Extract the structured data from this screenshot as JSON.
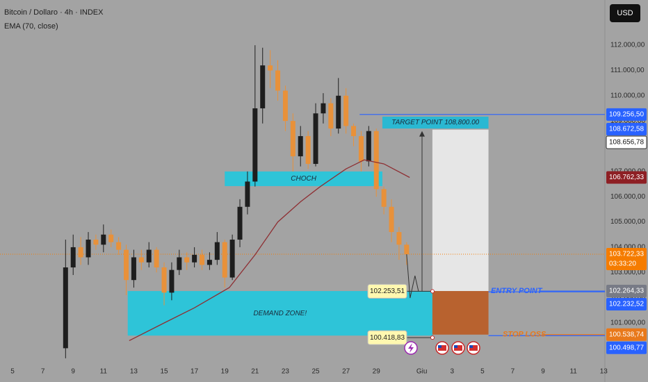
{
  "header": {
    "symbol": "Bitcoin / Dollaro · 4h · INDEX",
    "indicator": "EMA (70, close)",
    "currency": "USD"
  },
  "chart_data": {
    "type": "candlestick",
    "x": [
      8.5,
      9,
      9.5,
      10,
      10.5,
      11,
      11.5,
      12,
      12.5,
      13,
      13.5,
      14,
      14.5,
      15,
      15.5,
      16,
      16.5,
      17,
      17.5,
      18,
      18.5,
      19,
      19.5,
      20,
      20.5,
      21,
      21.5,
      22,
      22.5,
      23,
      23.5,
      24,
      24.5,
      25,
      25.5,
      26,
      26.5,
      27,
      27.5,
      28,
      28.5,
      29,
      29.5,
      30,
      30.5,
      31
    ],
    "open": [
      100000,
      103200,
      104000,
      103600,
      104300,
      104100,
      104500,
      104200,
      103900,
      102700,
      103600,
      103400,
      103900,
      103200,
      102200,
      103100,
      103600,
      103400,
      103700,
      103300,
      103500,
      104200,
      102800,
      104300,
      105600,
      106600,
      109500,
      111200,
      111000,
      110200,
      109000,
      107600,
      108400,
      107300,
      109300,
      109700,
      108700,
      110000,
      108800,
      108400,
      107400,
      108600,
      106300,
      105600,
      104600,
      104100
    ],
    "high": [
      104300,
      104500,
      104400,
      104600,
      104500,
      104900,
      104700,
      104400,
      104100,
      103900,
      103900,
      104200,
      104000,
      103400,
      103400,
      103900,
      103800,
      104000,
      103900,
      103800,
      104600,
      104300,
      104500,
      105900,
      107000,
      112000,
      111900,
      111800,
      111400,
      110400,
      109300,
      108800,
      108600,
      109700,
      110100,
      109900,
      110700,
      110300,
      108900,
      108600,
      108800,
      108700,
      106400,
      105900,
      104800,
      104200
    ],
    "low": [
      99600,
      102900,
      103300,
      103300,
      103900,
      103800,
      104000,
      103700,
      102100,
      102400,
      103100,
      103200,
      103000,
      101700,
      101900,
      102900,
      103100,
      103200,
      103100,
      103100,
      103300,
      102400,
      102700,
      104000,
      105300,
      106400,
      108900,
      110300,
      109800,
      108600,
      107000,
      107200,
      107100,
      107200,
      108900,
      108400,
      108500,
      108500,
      108000,
      107000,
      107200,
      106000,
      105300,
      104200,
      103500,
      103300
    ],
    "close": [
      103200,
      104000,
      103600,
      104300,
      104100,
      104500,
      104200,
      103900,
      102700,
      103600,
      103400,
      103900,
      103200,
      102200,
      103100,
      103600,
      103400,
      103700,
      103300,
      103500,
      104200,
      102800,
      104300,
      105600,
      106600,
      109500,
      111200,
      111000,
      110200,
      109000,
      107600,
      108400,
      107300,
      109300,
      109700,
      108700,
      110000,
      108800,
      108400,
      107400,
      108600,
      106300,
      105600,
      104600,
      104100,
      103722.33
    ],
    "up_color": "#1e1e1e",
    "down_color": "#e8913a",
    "ema": {
      "x": [
        12.7,
        15,
        17,
        19.3,
        21,
        22.5,
        24,
        25.3,
        27,
        28.2,
        29.5,
        31.2
      ],
      "values": [
        100300,
        101000,
        101600,
        102400,
        103700,
        105000,
        105800,
        106400,
        107100,
        107460,
        107300,
        106762.33
      ],
      "color": "#8e2f33"
    },
    "xlim": [
      4.174,
      44.08
    ],
    "xticks": [
      5,
      7,
      9,
      11,
      13,
      15,
      17,
      19,
      21,
      23,
      25,
      27,
      29,
      {
        "value": 32,
        "label": "Giu"
      },
      {
        "value": 34,
        "label": "3"
      },
      {
        "value": 36,
        "label": "5"
      },
      {
        "value": 38,
        "label": "7"
      },
      {
        "value": 40,
        "label": "9"
      },
      {
        "value": 42,
        "label": "11"
      },
      {
        "value": 44,
        "label": "13"
      }
    ],
    "ylim": [
      99350,
      113790
    ],
    "yticks": [
      {
        "value": 101000,
        "label": "101.000,00"
      },
      {
        "value": 102000,
        "label": "102.000,00"
      },
      {
        "value": 103000,
        "label": "103.000,00"
      },
      {
        "value": 104000,
        "label": "104.000,00"
      },
      {
        "value": 105000,
        "label": "105.000,00"
      },
      {
        "value": 106000,
        "label": "106.000,00"
      },
      {
        "value": 107000,
        "label": "107.000,00"
      },
      {
        "value": 108000,
        "label": "108.000,00"
      },
      {
        "value": 109000,
        "label": "109.000,00"
      },
      {
        "value": 110000,
        "label": "110.000,00"
      },
      {
        "value": 111000,
        "label": "111.000,00"
      },
      {
        "value": 112000,
        "label": "112.000,00"
      }
    ],
    "grid": false,
    "zones": [
      {
        "label": "CHOCH",
        "x": [
          19.0,
          29.4
        ],
        "y": [
          106420,
          107000
        ],
        "color": "#2ec4d8"
      },
      {
        "label": "DEMAND ZONE!",
        "x": [
          12.6,
          32.7
        ],
        "y": [
          100500,
          102264
        ],
        "color": "#2ec4d8"
      },
      {
        "label": "TARGET POINT 108,800.00",
        "x": [
          29.4,
          36.4
        ],
        "y": [
          108700,
          109170
        ],
        "color": "#2ab8d2"
      }
    ],
    "position": {
      "x": [
        32.7,
        36.4
      ],
      "entry": 102264.33,
      "target": 108656.78,
      "stop": 100538.74,
      "profit_color": "#e6e6e6",
      "loss_color": "#b8622f"
    },
    "levels": [
      {
        "value": 109256.5,
        "x": 27.9,
        "color": "#2962ff"
      },
      {
        "value": 102232.52,
        "x": 36.4,
        "color": "#2962ff"
      },
      {
        "value": 100498.77,
        "x": 36.4,
        "color": "#2962ff"
      }
    ],
    "current_price": {
      "value": 103722.33,
      "label": "103.722,33",
      "countdown": "03:33:20",
      "color": "#f57c00"
    },
    "price_labels": [
      {
        "value": 109256.5,
        "label": "109.256,50",
        "color": "#2962ff"
      },
      {
        "value": 108672.58,
        "label": "108.672,58",
        "color": "#2962ff"
      },
      {
        "value": 108656.78,
        "label": "108.656,78",
        "color": "#ffffff"
      },
      {
        "value": 106762.33,
        "label": "106.762,33",
        "color": "#8e1f24"
      },
      {
        "value": 102264.33,
        "label": "102.264,33",
        "color": "#787b86"
      },
      {
        "value": 102232.52,
        "label": "102.232,52",
        "color": "#2962ff"
      },
      {
        "value": 100538.74,
        "label": "100.538,74",
        "color": "#e8791b"
      },
      {
        "value": 100498.77,
        "label": "100.498,77",
        "color": "#2962ff"
      }
    ],
    "callouts": [
      {
        "value": 102253.51,
        "label": "102.253,51"
      },
      {
        "value": 100418.83,
        "label": "100.418,83"
      }
    ],
    "line_labels": [
      {
        "text": "ENTRY POINT",
        "value": 102264.33,
        "color": "#2962ff"
      },
      {
        "text": "STOP LOSS",
        "value": 100538.74,
        "color": "#e8791b"
      }
    ]
  }
}
